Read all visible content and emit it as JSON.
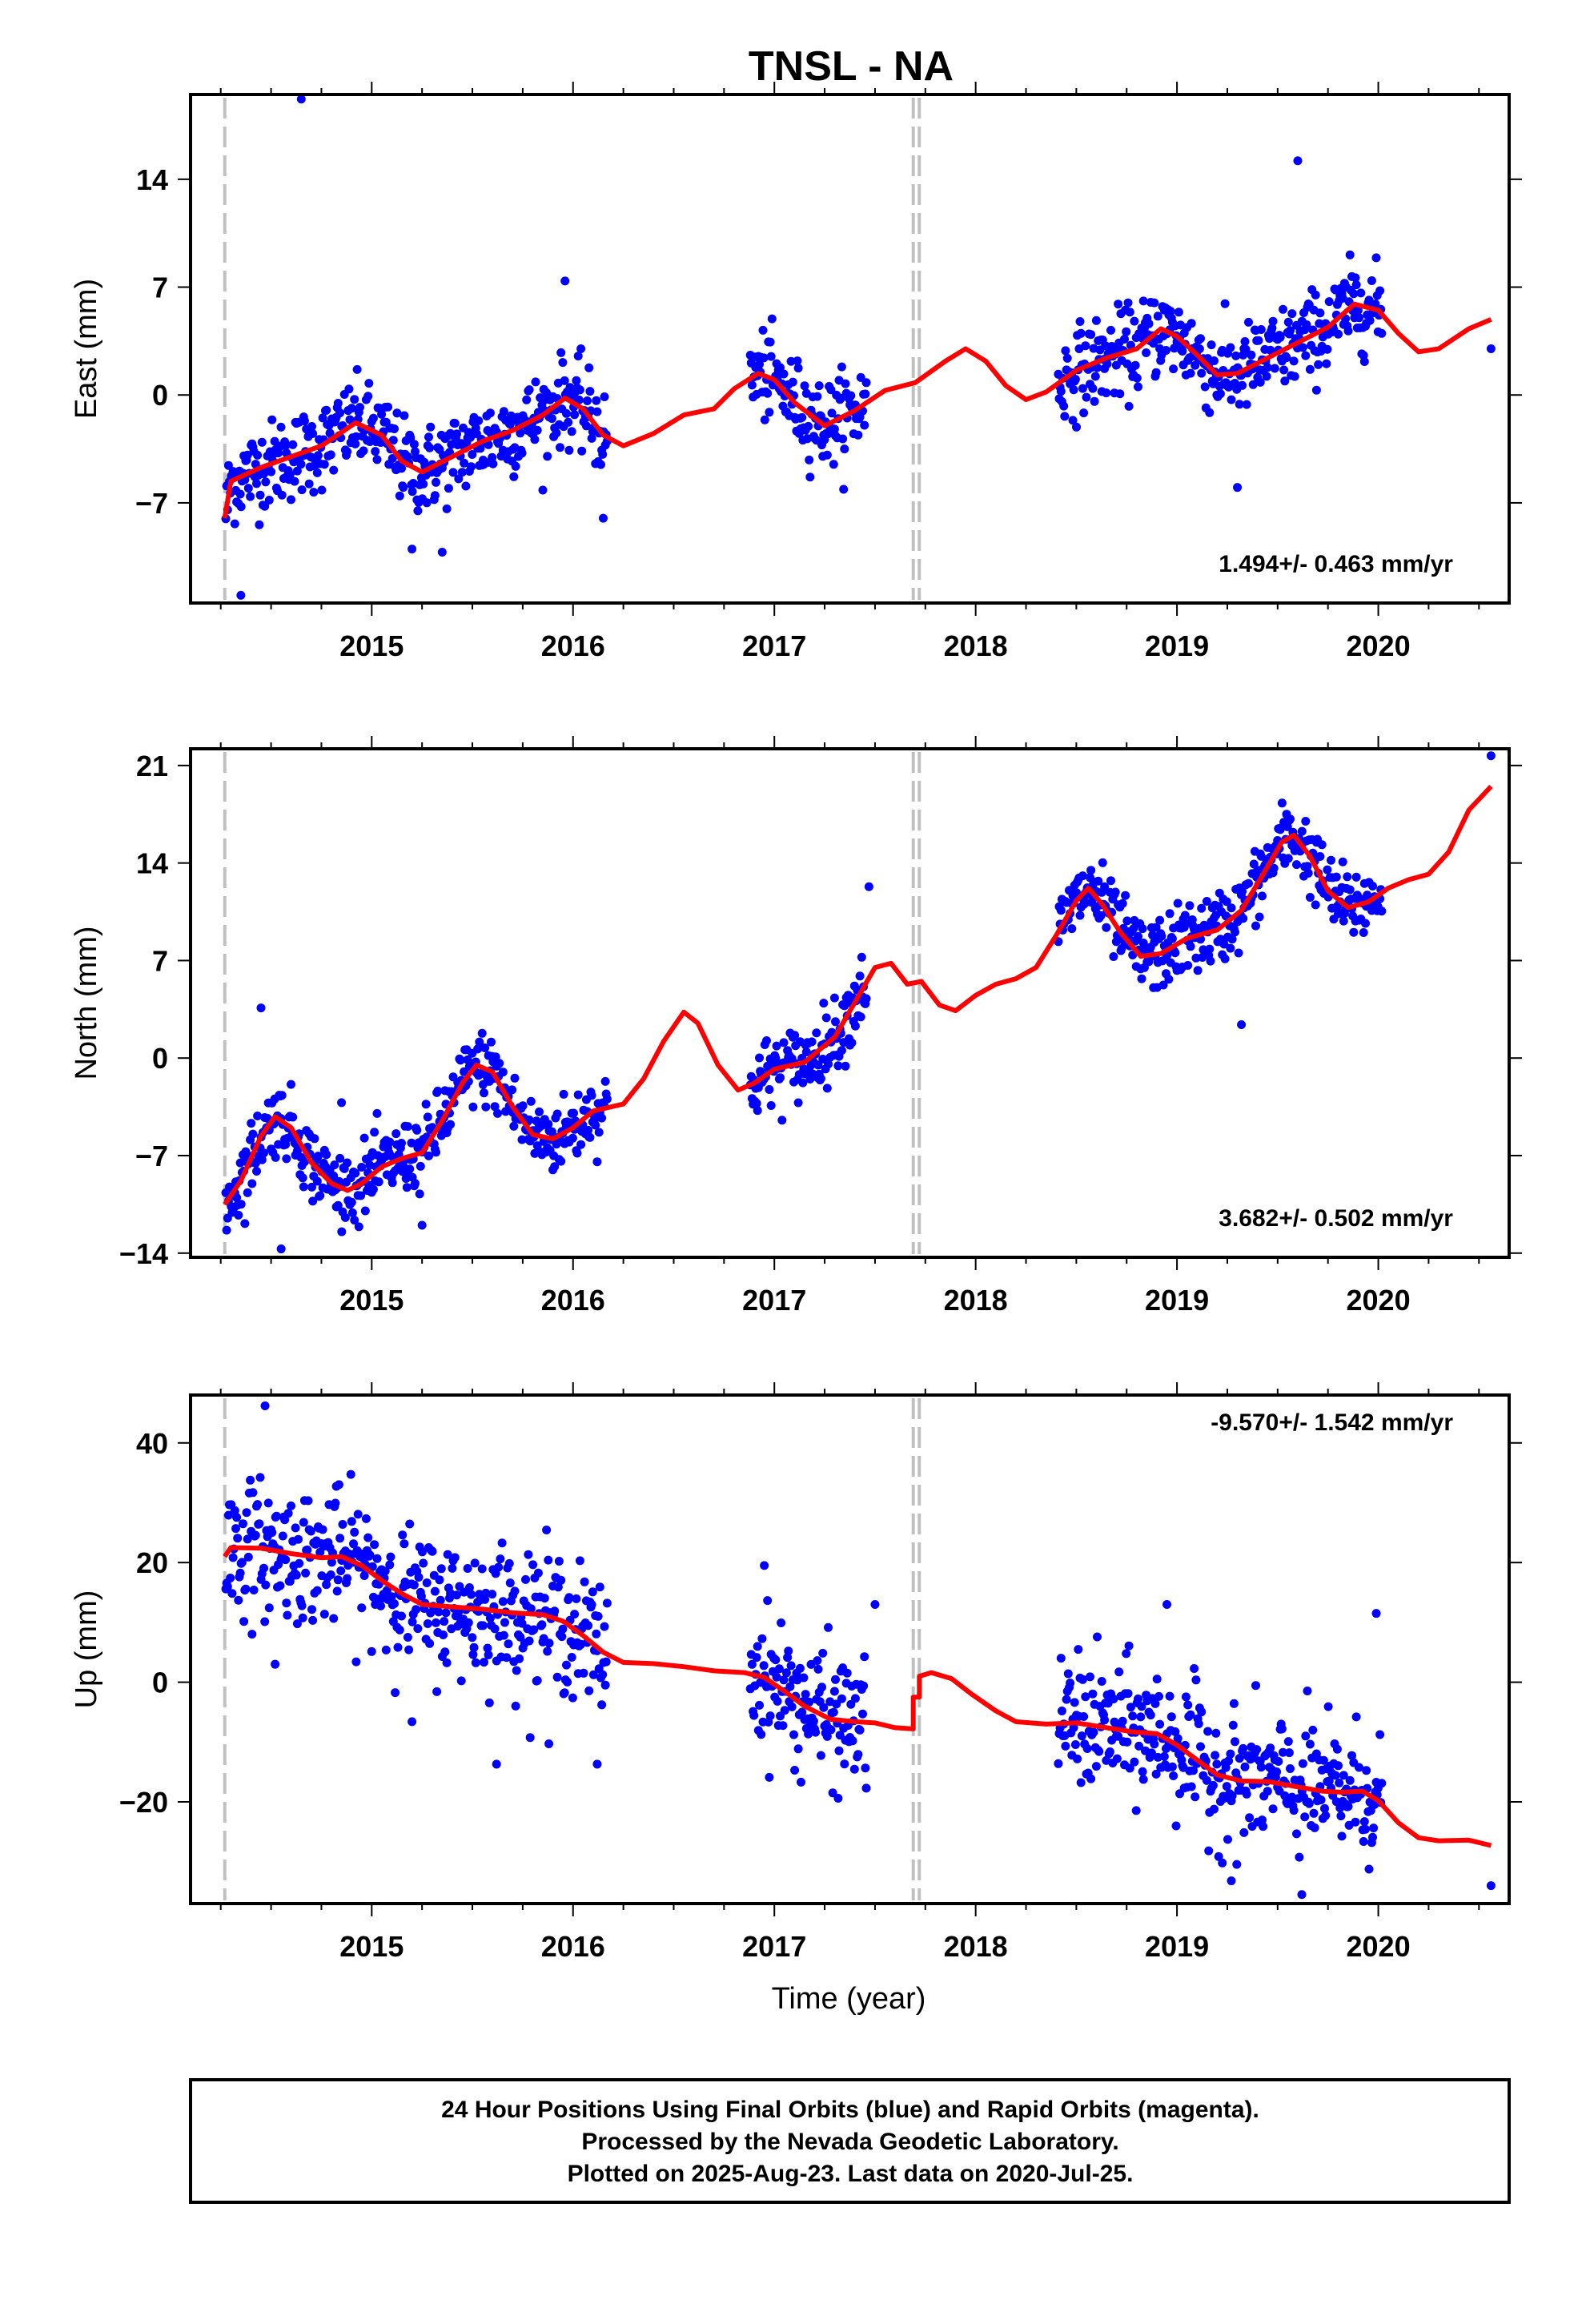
{
  "chart_data": {
    "type": "scatter",
    "title": "TNSL - NA",
    "xlabel": "Time (year)",
    "x_ticks": [
      "2015",
      "2016",
      "2017",
      "2018",
      "2019",
      "2020"
    ],
    "xlim": [
      2014.1,
      2020.65
    ],
    "equipment_change_lines": [
      2014.27,
      2017.69,
      2017.72
    ],
    "last_point_date": 2020.56,
    "data_gaps": [
      [
        2016.17,
        2016.88
      ],
      [
        2017.46,
        2018.41
      ],
      [
        2020.02,
        2020.55
      ]
    ],
    "colors": {
      "points": "#0000ff",
      "model": "#ff0000",
      "vline": "#c0c0c0"
    },
    "panels": [
      {
        "name": "East",
        "ylabel": "East (mm)",
        "ylim": [
          -13.5,
          19.5
        ],
        "y_ticks": [
          "14",
          "7",
          "0",
          "-7"
        ],
        "rate": "1.494+/- 0.463 mm/yr",
        "scatter_sd": 1.4,
        "model": [
          [
            2014.27,
            -8.0
          ],
          [
            2014.3,
            -5.6
          ],
          [
            2014.45,
            -4.7
          ],
          [
            2014.6,
            -4.0
          ],
          [
            2014.75,
            -3.3
          ],
          [
            2014.92,
            -1.8
          ],
          [
            2015.05,
            -2.6
          ],
          [
            2015.15,
            -4.3
          ],
          [
            2015.25,
            -5.0
          ],
          [
            2015.4,
            -4.0
          ],
          [
            2015.55,
            -3.0
          ],
          [
            2015.7,
            -2.3
          ],
          [
            2015.85,
            -1.3
          ],
          [
            2015.96,
            -0.2
          ],
          [
            2016.05,
            -0.9
          ],
          [
            2016.15,
            -2.6
          ],
          [
            2016.25,
            -3.3
          ],
          [
            2016.4,
            -2.5
          ],
          [
            2016.55,
            -1.3
          ],
          [
            2016.7,
            -0.9
          ],
          [
            2016.8,
            0.4
          ],
          [
            2016.92,
            1.4
          ],
          [
            2017.0,
            1.0
          ],
          [
            2017.1,
            -0.5
          ],
          [
            2017.25,
            -2.0
          ],
          [
            2017.4,
            -1.0
          ],
          [
            2017.55,
            0.3
          ],
          [
            2017.7,
            0.8
          ],
          [
            2017.85,
            2.2
          ],
          [
            2017.95,
            3.0
          ],
          [
            2018.05,
            2.2
          ],
          [
            2018.15,
            0.6
          ],
          [
            2018.25,
            -0.3
          ],
          [
            2018.35,
            0.2
          ],
          [
            2018.5,
            1.6
          ],
          [
            2018.65,
            2.4
          ],
          [
            2018.8,
            3.0
          ],
          [
            2018.92,
            4.3
          ],
          [
            2019.0,
            3.8
          ],
          [
            2019.1,
            2.6
          ],
          [
            2019.2,
            1.3
          ],
          [
            2019.3,
            1.4
          ],
          [
            2019.45,
            2.4
          ],
          [
            2019.6,
            3.4
          ],
          [
            2019.75,
            4.4
          ],
          [
            2019.88,
            5.9
          ],
          [
            2020.0,
            5.5
          ],
          [
            2020.1,
            4.0
          ],
          [
            2020.2,
            2.8
          ],
          [
            2020.3,
            3.0
          ],
          [
            2020.45,
            4.3
          ],
          [
            2020.56,
            4.9
          ]
        ],
        "outliers": [
          [
            2014.65,
            19.2
          ],
          [
            2014.35,
            -13.0
          ],
          [
            2015.2,
            -10.0
          ],
          [
            2015.35,
            -10.2
          ],
          [
            2015.96,
            7.4
          ],
          [
            2016.15,
            -8.0
          ],
          [
            2019.3,
            -6.0
          ],
          [
            2019.6,
            15.2
          ],
          [
            2020.56,
            3.0
          ]
        ]
      },
      {
        "name": "North",
        "ylabel": "North (mm)",
        "ylim": [
          -14.3,
          22.2
        ],
        "y_ticks": [
          "21",
          "14",
          "7",
          "0",
          "-7",
          "-14"
        ],
        "rate": "3.682+/- 0.502 mm/yr",
        "scatter_sd": 1.3,
        "model": [
          [
            2014.27,
            -10.5
          ],
          [
            2014.35,
            -8.8
          ],
          [
            2014.45,
            -5.6
          ],
          [
            2014.52,
            -4.2
          ],
          [
            2014.6,
            -5.0
          ],
          [
            2014.7,
            -7.5
          ],
          [
            2014.8,
            -9.0
          ],
          [
            2014.88,
            -9.5
          ],
          [
            2014.95,
            -9.0
          ],
          [
            2015.05,
            -7.8
          ],
          [
            2015.15,
            -7.2
          ],
          [
            2015.25,
            -6.8
          ],
          [
            2015.35,
            -4.5
          ],
          [
            2015.45,
            -1.8
          ],
          [
            2015.52,
            -0.5
          ],
          [
            2015.6,
            -1.0
          ],
          [
            2015.7,
            -3.5
          ],
          [
            2015.8,
            -5.5
          ],
          [
            2015.9,
            -5.8
          ],
          [
            2016.0,
            -5.0
          ],
          [
            2016.1,
            -3.8
          ],
          [
            2016.25,
            -3.3
          ],
          [
            2016.35,
            -1.5
          ],
          [
            2016.45,
            1.2
          ],
          [
            2016.55,
            3.3
          ],
          [
            2016.62,
            2.5
          ],
          [
            2016.72,
            -0.5
          ],
          [
            2016.82,
            -2.3
          ],
          [
            2016.9,
            -1.8
          ],
          [
            2017.0,
            -0.8
          ],
          [
            2017.15,
            -0.3
          ],
          [
            2017.3,
            1.5
          ],
          [
            2017.4,
            4.0
          ],
          [
            2017.5,
            6.5
          ],
          [
            2017.58,
            6.8
          ],
          [
            2017.66,
            5.3
          ],
          [
            2017.73,
            5.5
          ],
          [
            2017.82,
            3.8
          ],
          [
            2017.9,
            3.4
          ],
          [
            2018.0,
            4.5
          ],
          [
            2018.1,
            5.3
          ],
          [
            2018.2,
            5.7
          ],
          [
            2018.3,
            6.5
          ],
          [
            2018.4,
            8.8
          ],
          [
            2018.5,
            11.3
          ],
          [
            2018.56,
            12.2
          ],
          [
            2018.63,
            11.0
          ],
          [
            2018.72,
            9.0
          ],
          [
            2018.82,
            7.3
          ],
          [
            2018.92,
            7.5
          ],
          [
            2019.05,
            8.6
          ],
          [
            2019.2,
            9.2
          ],
          [
            2019.32,
            10.6
          ],
          [
            2019.42,
            13.0
          ],
          [
            2019.52,
            15.5
          ],
          [
            2019.58,
            16.0
          ],
          [
            2019.66,
            14.5
          ],
          [
            2019.75,
            12.0
          ],
          [
            2019.85,
            10.8
          ],
          [
            2019.95,
            11.2
          ],
          [
            2020.05,
            12.2
          ],
          [
            2020.15,
            12.8
          ],
          [
            2020.25,
            13.2
          ],
          [
            2020.35,
            14.8
          ],
          [
            2020.45,
            17.8
          ],
          [
            2020.56,
            19.5
          ]
        ],
        "outliers": [
          [
            2014.45,
            3.6
          ],
          [
            2014.55,
            -13.7
          ],
          [
            2014.85,
            -3.2
          ],
          [
            2015.25,
            -12.0
          ],
          [
            2017.47,
            12.3
          ],
          [
            2019.32,
            2.4
          ],
          [
            2020.56,
            21.7
          ]
        ]
      },
      {
        "name": "Up",
        "ylabel": "Up (mm)",
        "ylim": [
          -37,
          48
        ],
        "y_ticks": [
          "40",
          "20",
          "0",
          "-20"
        ],
        "rate": "-9.570+/- 1.542 mm/yr",
        "scatter_sd": 5.5,
        "model": [
          [
            2014.27,
            21.0
          ],
          [
            2014.3,
            22.5
          ],
          [
            2014.45,
            22.4
          ],
          [
            2014.6,
            21.5
          ],
          [
            2014.75,
            20.8
          ],
          [
            2014.85,
            21.0
          ],
          [
            2014.95,
            19.5
          ],
          [
            2015.05,
            17.0
          ],
          [
            2015.15,
            14.8
          ],
          [
            2015.25,
            13.0
          ],
          [
            2015.4,
            12.6
          ],
          [
            2015.55,
            12.2
          ],
          [
            2015.7,
            11.6
          ],
          [
            2015.85,
            11.3
          ],
          [
            2015.95,
            10.2
          ],
          [
            2016.05,
            7.8
          ],
          [
            2016.15,
            5.0
          ],
          [
            2016.25,
            3.3
          ],
          [
            2016.4,
            3.1
          ],
          [
            2016.55,
            2.6
          ],
          [
            2016.7,
            1.9
          ],
          [
            2016.85,
            1.6
          ],
          [
            2016.95,
            0.8
          ],
          [
            2017.05,
            -1.5
          ],
          [
            2017.15,
            -4.0
          ],
          [
            2017.28,
            -6.2
          ],
          [
            2017.4,
            -6.6
          ],
          [
            2017.5,
            -6.8
          ],
          [
            2017.6,
            -7.6
          ],
          [
            2017.69,
            -7.8
          ],
          [
            2017.69,
            -2.5
          ],
          [
            2017.72,
            -2.5
          ],
          [
            2017.72,
            1.0
          ],
          [
            2017.78,
            1.6
          ],
          [
            2017.88,
            0.6
          ],
          [
            2017.98,
            -2.0
          ],
          [
            2018.1,
            -4.8
          ],
          [
            2018.2,
            -6.6
          ],
          [
            2018.35,
            -7.0
          ],
          [
            2018.5,
            -6.8
          ],
          [
            2018.65,
            -7.6
          ],
          [
            2018.78,
            -8.3
          ],
          [
            2018.9,
            -8.6
          ],
          [
            2019.0,
            -10.5
          ],
          [
            2019.1,
            -13.0
          ],
          [
            2019.2,
            -15.5
          ],
          [
            2019.32,
            -16.5
          ],
          [
            2019.45,
            -16.6
          ],
          [
            2019.6,
            -17.5
          ],
          [
            2019.72,
            -18.2
          ],
          [
            2019.82,
            -18.4
          ],
          [
            2019.92,
            -18.2
          ],
          [
            2020.0,
            -19.8
          ],
          [
            2020.1,
            -23.5
          ],
          [
            2020.2,
            -26.0
          ],
          [
            2020.3,
            -26.5
          ],
          [
            2020.45,
            -26.4
          ],
          [
            2020.56,
            -27.3
          ]
        ],
        "outliers": [
          [
            2014.47,
            46.2
          ],
          [
            2014.52,
            3.0
          ],
          [
            2015.2,
            -6.6
          ],
          [
            2015.62,
            -13.7
          ],
          [
            2015.88,
            -10.3
          ],
          [
            2016.12,
            -13.7
          ],
          [
            2016.95,
            19.5
          ],
          [
            2017.5,
            13.0
          ],
          [
            2018.95,
            13.0
          ],
          [
            2019.27,
            -33.2
          ],
          [
            2019.62,
            -35.5
          ],
          [
            2019.99,
            11.5
          ],
          [
            2020.56,
            -34.0
          ]
        ]
      }
    ]
  },
  "footer": {
    "line1": "24 Hour Positions Using Final Orbits (blue) and Rapid Orbits (magenta).",
    "line2": "Processed by the Nevada Geodetic Laboratory.",
    "line3": "Plotted on 2025-Aug-23. Last data on 2020-Jul-25."
  }
}
